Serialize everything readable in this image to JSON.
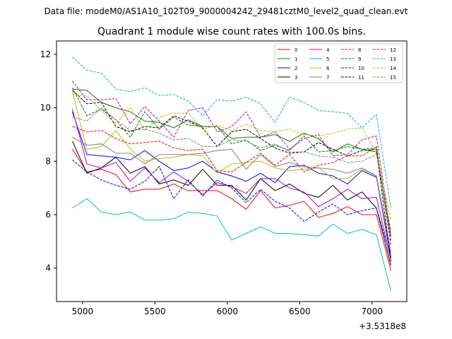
{
  "figure_suptitle": "Data file: modeM0/AS1A10_102T09_9000004242_29481cztM0_level2_quad_clean.evt",
  "chart_data": {
    "type": "line",
    "title": "Quadrant 1 module wise count rates with 100.0s bins.",
    "xlabel": "",
    "ylabel": "",
    "x_offset_label": "+3.5318e8",
    "xlim": [
      4820,
      7240
    ],
    "ylim": [
      2.75,
      12.5
    ],
    "x_ticks": [
      5000,
      5500,
      6000,
      6500,
      7000
    ],
    "x_tick_labels": [
      "5000",
      "5500",
      "6000",
      "6500",
      "7000"
    ],
    "y_ticks": [
      4,
      6,
      8,
      10,
      12
    ],
    "y_tick_labels": [
      "4",
      "6",
      "8",
      "10",
      "12"
    ],
    "grid": false,
    "legend_placement": "top-right",
    "legend_columns": 4,
    "x": [
      4930,
      5030,
      5130,
      5230,
      5330,
      5430,
      5530,
      5630,
      5730,
      5830,
      5930,
      6030,
      6130,
      6230,
      6330,
      6430,
      6530,
      6630,
      6730,
      6830,
      6930,
      7030,
      7130
    ],
    "series": [
      {
        "name": "0",
        "color": "#ff0000",
        "dash": "solid",
        "values": [
          8.45,
          7.6,
          7.7,
          7.5,
          6.85,
          6.95,
          6.95,
          7.15,
          6.9,
          6.9,
          6.9,
          6.6,
          6.2,
          6.9,
          6.25,
          6.35,
          6.5,
          5.9,
          6.05,
          6.3,
          6.0,
          6.0,
          3.9
        ]
      },
      {
        "name": "1",
        "color": "#008000",
        "dash": "solid",
        "values": [
          10.7,
          10.65,
          10.2,
          10.0,
          9.85,
          9.5,
          9.45,
          9.25,
          9.55,
          9.3,
          9.3,
          8.85,
          8.9,
          8.9,
          9.0,
          8.75,
          9.05,
          8.85,
          8.35,
          8.65,
          8.45,
          8.35,
          5.2
        ]
      },
      {
        "name": "2",
        "color": "#0000ff",
        "dash": "solid",
        "values": [
          9.85,
          8.25,
          8.2,
          8.15,
          8.05,
          8.4,
          8.0,
          7.65,
          7.75,
          8.0,
          7.6,
          7.45,
          7.25,
          7.55,
          7.2,
          7.8,
          7.85,
          7.55,
          7.45,
          7.15,
          7.65,
          7.4,
          4.4
        ]
      },
      {
        "name": "3",
        "color": "#000000",
        "dash": "solid",
        "values": [
          8.75,
          7.55,
          7.75,
          8.15,
          7.55,
          7.8,
          7.15,
          7.3,
          7.1,
          7.7,
          7.1,
          7.1,
          6.55,
          7.35,
          6.9,
          7.15,
          6.8,
          6.65,
          7.1,
          6.55,
          6.85,
          6.25,
          4.1
        ]
      },
      {
        "name": "4",
        "color": "#bf00bf",
        "dash": "solid",
        "values": [
          9.95,
          7.9,
          7.75,
          7.95,
          7.25,
          7.75,
          7.2,
          7.6,
          7.25,
          6.75,
          7.2,
          7.05,
          6.8,
          7.35,
          7.35,
          7.0,
          6.85,
          6.3,
          6.6,
          6.95,
          6.6,
          6.65,
          4.3
        ]
      },
      {
        "name": "5",
        "color": "#00bfbf",
        "dash": "solid",
        "values": [
          6.25,
          6.6,
          6.1,
          6.0,
          6.1,
          5.8,
          5.8,
          5.85,
          6.1,
          6.05,
          5.95,
          5.05,
          5.3,
          5.55,
          5.3,
          5.3,
          5.25,
          5.2,
          5.65,
          5.3,
          5.45,
          5.25,
          3.15
        ]
      },
      {
        "name": "6",
        "color": "#bfbf00",
        "dash": "solid",
        "values": [
          10.6,
          8.45,
          8.55,
          9.15,
          8.45,
          8.0,
          8.1,
          8.15,
          8.25,
          8.2,
          7.55,
          7.9,
          7.95,
          8.0,
          7.75,
          7.65,
          7.7,
          7.75,
          7.35,
          7.35,
          7.7,
          7.45,
          4.55
        ]
      },
      {
        "name": "7",
        "color": "#808080",
        "dash": "solid",
        "values": [
          8.9,
          8.6,
          8.65,
          8.3,
          8.3,
          7.9,
          8.25,
          8.25,
          8.25,
          8.3,
          8.4,
          8.45,
          7.7,
          8.25,
          7.8,
          7.95,
          7.8,
          7.75,
          7.7,
          7.55,
          7.75,
          7.45,
          4.6
        ]
      },
      {
        "name": "8",
        "color": "#ff0000",
        "dash": "dashed",
        "values": [
          9.3,
          9.1,
          9.15,
          8.85,
          8.65,
          8.7,
          8.75,
          8.5,
          8.4,
          8.45,
          7.65,
          7.6,
          7.95,
          8.3,
          7.85,
          8.25,
          7.6,
          7.85,
          7.95,
          8.2,
          8.2,
          8.55,
          4.85
        ]
      },
      {
        "name": "9",
        "color": "#008000",
        "dash": "dashed",
        "values": [
          10.75,
          9.7,
          9.95,
          9.55,
          8.9,
          9.85,
          9.2,
          9.65,
          9.35,
          9.3,
          9.3,
          8.65,
          8.8,
          8.4,
          8.6,
          8.4,
          8.95,
          8.35,
          8.4,
          8.55,
          8.45,
          8.5,
          5.05
        ]
      },
      {
        "name": "10",
        "color": "#0000ff",
        "dash": "dashed",
        "values": [
          8.05,
          7.6,
          7.3,
          7.1,
          6.95,
          7.25,
          7.8,
          6.6,
          7.3,
          6.7,
          7.3,
          7.0,
          6.45,
          6.95,
          6.5,
          6.25,
          5.75,
          6.1,
          6.4,
          6.0,
          6.15,
          6.25,
          4.4
        ]
      },
      {
        "name": "11",
        "color": "#000000",
        "dash": "dashed",
        "values": [
          10.65,
          10.15,
          10.2,
          9.3,
          9.1,
          9.3,
          9.25,
          9.7,
          9.5,
          9.25,
          8.55,
          9.1,
          9.2,
          8.85,
          8.5,
          8.3,
          8.35,
          8.7,
          8.45,
          8.2,
          8.4,
          8.45,
          4.25
        ]
      },
      {
        "name": "12",
        "color": "#bf00bf",
        "dash": "dashed",
        "values": [
          11.0,
          10.3,
          10.3,
          10.35,
          9.4,
          10.05,
          9.5,
          8.9,
          9.9,
          10.0,
          9.1,
          9.3,
          9.85,
          8.9,
          9.1,
          8.45,
          8.85,
          9.0,
          8.2,
          8.25,
          8.8,
          8.95,
          5.2
        ]
      },
      {
        "name": "13",
        "color": "#00bfbf",
        "dash": "dashed",
        "values": [
          11.9,
          11.4,
          11.3,
          10.7,
          10.6,
          10.75,
          10.45,
          10.5,
          10.25,
          9.7,
          10.3,
          10.25,
          10.4,
          10.15,
          9.45,
          10.4,
          10.2,
          9.9,
          9.85,
          9.8,
          9.25,
          9.75,
          6.25
        ]
      },
      {
        "name": "14",
        "color": "#bfbf00",
        "dash": "dashed",
        "values": [
          10.5,
          10.45,
          9.9,
          9.4,
          10.0,
          9.15,
          9.65,
          9.8,
          9.8,
          9.2,
          9.35,
          9.15,
          9.4,
          9.15,
          9.1,
          9.2,
          9.0,
          8.95,
          9.05,
          9.2,
          9.25,
          8.3,
          5.8
        ]
      },
      {
        "name": "15",
        "color": "#808080",
        "dash": "dashed",
        "values": [
          9.65,
          9.5,
          10.0,
          9.55,
          9.15,
          9.2,
          9.05,
          8.8,
          8.85,
          8.55,
          8.55,
          8.8,
          8.75,
          8.5,
          8.65,
          8.35,
          8.35,
          8.2,
          8.15,
          7.95,
          8.0,
          8.25,
          5.4
        ]
      }
    ]
  }
}
